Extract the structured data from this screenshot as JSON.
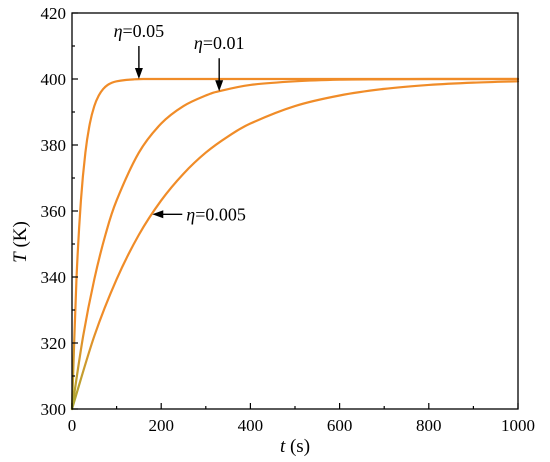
{
  "chart_data": {
    "type": "line",
    "title": "",
    "xlabel": {
      "symbol": "t",
      "unit": " (s)"
    },
    "ylabel": {
      "symbol": "T",
      "unit": " (K)"
    },
    "xlim": [
      0,
      1000
    ],
    "ylim": [
      300,
      420
    ],
    "xticks": [
      0,
      200,
      400,
      600,
      800,
      1000
    ],
    "yticks": [
      300,
      320,
      340,
      360,
      380,
      400,
      420
    ],
    "grid": false,
    "legend": "none",
    "colors": {
      "curve": "#f08c28",
      "curve_start": "#a8a832",
      "axis": "#000000",
      "arrow": "#000000"
    },
    "series": [
      {
        "x": [
          0,
          10,
          20,
          30,
          40,
          50,
          60,
          70,
          80,
          90,
          100,
          120,
          140,
          160,
          200,
          300,
          400,
          600,
          800,
          1000
        ],
        "y": [
          300,
          339.3,
          363.2,
          377.7,
          386.5,
          391.8,
          395.0,
          397.0,
          398.2,
          398.9,
          399.3,
          399.7,
          399.9,
          400.0,
          400.0,
          400.0,
          400.0,
          400.0,
          400.0,
          400.0
        ]
      },
      {
        "x": [
          0,
          25,
          50,
          75,
          100,
          150,
          200,
          250,
          300,
          330,
          400,
          500,
          600,
          700,
          800,
          900,
          1000
        ],
        "y": [
          300,
          322.1,
          339.3,
          352.8,
          363.2,
          377.7,
          386.5,
          391.8,
          395.0,
          396.3,
          398.2,
          399.3,
          399.8,
          399.9,
          400.0,
          400.0,
          400.0
        ]
      },
      {
        "x": [
          0,
          50,
          100,
          150,
          200,
          250,
          300,
          350,
          400,
          500,
          600,
          700,
          800,
          900,
          1000
        ],
        "y": [
          300,
          322.1,
          339.3,
          352.8,
          363.2,
          371.3,
          377.7,
          382.6,
          386.5,
          391.8,
          395.0,
          397.0,
          398.2,
          398.9,
          399.3
        ]
      }
    ],
    "annotations": [
      {
        "symbol": "η",
        "value": "=0.05",
        "target": [
          150,
          400
        ],
        "direction": "down"
      },
      {
        "symbol": "η",
        "value": "=0.01",
        "target": [
          330,
          396.3
        ],
        "direction": "down"
      },
      {
        "symbol": "η",
        "value": "=0.005",
        "target": [
          180,
          359
        ],
        "direction": "left"
      }
    ]
  }
}
